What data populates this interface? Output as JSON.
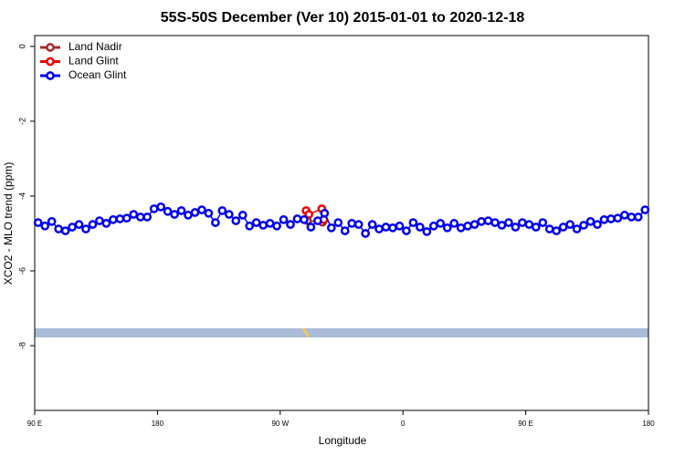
{
  "chart_data": {
    "type": "line",
    "title": "55S-50S December (Ver 10)   2015-01-01 to 2020-12-18",
    "xlabel": "Longitude",
    "ylabel": "XCO2 - MLO trend (ppm)",
    "xlim": [
      90,
      540
    ],
    "xticks": [
      {
        "value": 90,
        "label": "90 E"
      },
      {
        "value": 180,
        "label": "180"
      },
      {
        "value": 270,
        "label": "90 W"
      },
      {
        "value": 360,
        "label": "0"
      },
      {
        "value": 450,
        "label": "90 E"
      },
      {
        "value": 540,
        "label": "180"
      }
    ],
    "ylim": [
      -9.73,
      0.29
    ],
    "yticks": [
      0,
      -2,
      -4,
      -6,
      -8
    ],
    "legend": "upper left",
    "series": [
      {
        "name": "Land Nadir",
        "color": "#a52a2a",
        "x": [
          290,
          301
        ],
        "values": [
          -4.66,
          -4.7
        ]
      },
      {
        "name": "Land Glint",
        "color": "#ee0000",
        "x": [
          289,
          291,
          300.5,
          302
        ],
        "values": [
          -4.39,
          -4.49,
          -4.34,
          -4.63
        ]
      },
      {
        "name": "Ocean Glint",
        "color": "#0000ee",
        "x": [
          92.5,
          97.5,
          102.5,
          107.5,
          112.5,
          117.5,
          122.5,
          127.5,
          132.5,
          137.5,
          142.5,
          147.5,
          152.5,
          157.5,
          162.5,
          167.5,
          172.5,
          177.5,
          182.5,
          187.5,
          192.5,
          197.5,
          202.5,
          207.5,
          212.5,
          217.5,
          222.5,
          227.5,
          232.5,
          237.5,
          242.5,
          247.5,
          252.5,
          257.5,
          262.5,
          267.5,
          272.5,
          277.5,
          282.5,
          287.5,
          292.5,
          297.5,
          302.5,
          307.5,
          312.5,
          317.5,
          322.5,
          327.5,
          332.5,
          337.5,
          342.5,
          347.5,
          352.5,
          357.5,
          362.5,
          367.5,
          372.5,
          377.5,
          382.5,
          387.5,
          392.5,
          397.5,
          402.5,
          407.5,
          412.5,
          417.5,
          422.5,
          427.5,
          432.5,
          437.5,
          442.5,
          447.5,
          452.5,
          457.5,
          462.5,
          467.5,
          472.5,
          477.5,
          482.5,
          487.5,
          492.5,
          497.5,
          502.5,
          507.5,
          512.5,
          517.5,
          522.5,
          527.5,
          532.5,
          537.5
        ],
        "values": [
          -4.71,
          -4.8,
          -4.68,
          -4.88,
          -4.93,
          -4.83,
          -4.76,
          -4.88,
          -4.76,
          -4.66,
          -4.73,
          -4.63,
          -4.61,
          -4.59,
          -4.49,
          -4.56,
          -4.56,
          -4.34,
          -4.29,
          -4.41,
          -4.49,
          -4.39,
          -4.51,
          -4.44,
          -4.37,
          -4.46,
          -4.71,
          -4.39,
          -4.49,
          -4.66,
          -4.51,
          -4.8,
          -4.71,
          -4.78,
          -4.73,
          -4.8,
          -4.63,
          -4.76,
          -4.61,
          -4.63,
          -4.83,
          -4.66,
          -4.46,
          -4.85,
          -4.71,
          -4.93,
          -4.73,
          -4.76,
          -5.0,
          -4.76,
          -4.88,
          -4.83,
          -4.85,
          -4.8,
          -4.93,
          -4.71,
          -4.83,
          -4.95,
          -4.8,
          -4.73,
          -4.85,
          -4.73,
          -4.85,
          -4.8,
          -4.76,
          -4.68,
          -4.66,
          -4.71,
          -4.78,
          -4.71,
          -4.83,
          -4.71,
          -4.76,
          -4.83,
          -4.71,
          -4.88,
          -4.93,
          -4.83,
          -4.76,
          -4.88,
          -4.78,
          -4.68,
          -4.76,
          -4.63,
          -4.61,
          -4.59,
          -4.51,
          -4.56,
          -4.56,
          -4.37
        ]
      }
    ]
  }
}
